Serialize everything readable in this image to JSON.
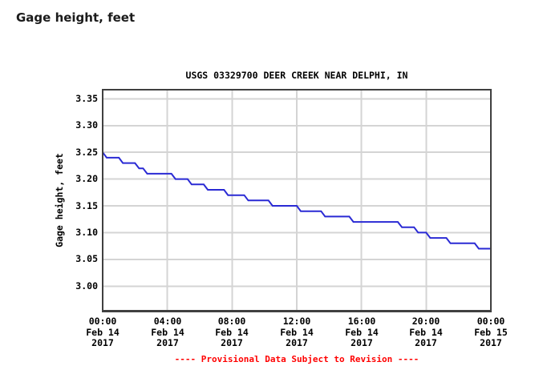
{
  "page": {
    "heading": "Gage height, feet"
  },
  "chart": {
    "title": "USGS 03329700 DEER CREEK NEAR DELPHI, IN",
    "ylabel": "Gage height, feet",
    "provisional_note": "---- Provisional Data Subject to Revision ----"
  },
  "colors": {
    "line": "#2a2ad4",
    "grid": "#d4d4d4",
    "border": "#404040",
    "provisional": "#ff0000",
    "heading": "#1b1b1b"
  },
  "chart_data": {
    "type": "line",
    "title": "USGS 03329700 DEER CREEK NEAR DELPHI, IN",
    "xlabel": "",
    "ylabel": "Gage height, feet",
    "grid": true,
    "ylim": [
      2.954,
      3.367
    ],
    "xlim": [
      0,
      24
    ],
    "x_unit": "hours from Feb 14 2017 00:00",
    "x_start": 0,
    "x_step": 0.25,
    "values": [
      3.25,
      3.24,
      3.24,
      3.24,
      3.24,
      3.23,
      3.23,
      3.23,
      3.23,
      3.22,
      3.22,
      3.21,
      3.21,
      3.21,
      3.21,
      3.21,
      3.21,
      3.21,
      3.2,
      3.2,
      3.2,
      3.2,
      3.19,
      3.19,
      3.19,
      3.19,
      3.18,
      3.18,
      3.18,
      3.18,
      3.18,
      3.17,
      3.17,
      3.17,
      3.17,
      3.17,
      3.16,
      3.16,
      3.16,
      3.16,
      3.16,
      3.16,
      3.15,
      3.15,
      3.15,
      3.15,
      3.15,
      3.15,
      3.15,
      3.14,
      3.14,
      3.14,
      3.14,
      3.14,
      3.14,
      3.13,
      3.13,
      3.13,
      3.13,
      3.13,
      3.13,
      3.13,
      3.12,
      3.12,
      3.12,
      3.12,
      3.12,
      3.12,
      3.12,
      3.12,
      3.12,
      3.12,
      3.12,
      3.12,
      3.11,
      3.11,
      3.11,
      3.11,
      3.1,
      3.1,
      3.1,
      3.09,
      3.09,
      3.09,
      3.09,
      3.09,
      3.08,
      3.08,
      3.08,
      3.08,
      3.08,
      3.08,
      3.08,
      3.07,
      3.07,
      3.07,
      3.07
    ],
    "yticks": [
      3.0,
      3.05,
      3.1,
      3.15,
      3.2,
      3.25,
      3.3,
      3.35
    ],
    "xticks": [
      {
        "hour": 0,
        "time": "00:00",
        "date": "Feb 14",
        "year": "2017"
      },
      {
        "hour": 4,
        "time": "04:00",
        "date": "Feb 14",
        "year": "2017"
      },
      {
        "hour": 8,
        "time": "08:00",
        "date": "Feb 14",
        "year": "2017"
      },
      {
        "hour": 12,
        "time": "12:00",
        "date": "Feb 14",
        "year": "2017"
      },
      {
        "hour": 16,
        "time": "16:00",
        "date": "Feb 14",
        "year": "2017"
      },
      {
        "hour": 20,
        "time": "20:00",
        "date": "Feb 14",
        "year": "2017"
      },
      {
        "hour": 24,
        "time": "00:00",
        "date": "Feb 15",
        "year": "2017"
      }
    ]
  }
}
